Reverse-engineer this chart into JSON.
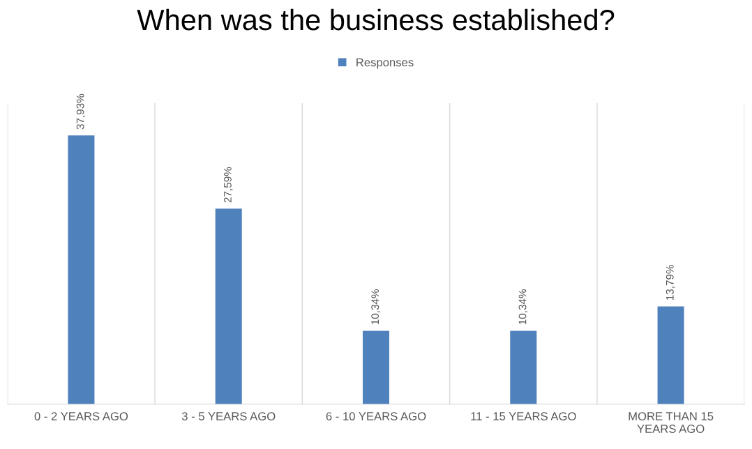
{
  "chart_data": {
    "type": "bar",
    "title": "When was the business established?",
    "categories": [
      "0 - 2 YEARS AGO",
      "3 - 5 YEARS AGO",
      "6 - 10 YEARS AGO",
      "11 - 15 YEARS AGO",
      "MORE THAN 15 YEARS AGO"
    ],
    "series": [
      {
        "name": "Responses",
        "color": "#4f81bd",
        "values": [
          37.93,
          27.59,
          10.34,
          10.34,
          13.79
        ],
        "value_labels": [
          "37,93%",
          "27,59%",
          "10,34%",
          "10,34%",
          "13,79%"
        ]
      }
    ],
    "grid": "x",
    "legend": "top"
  }
}
